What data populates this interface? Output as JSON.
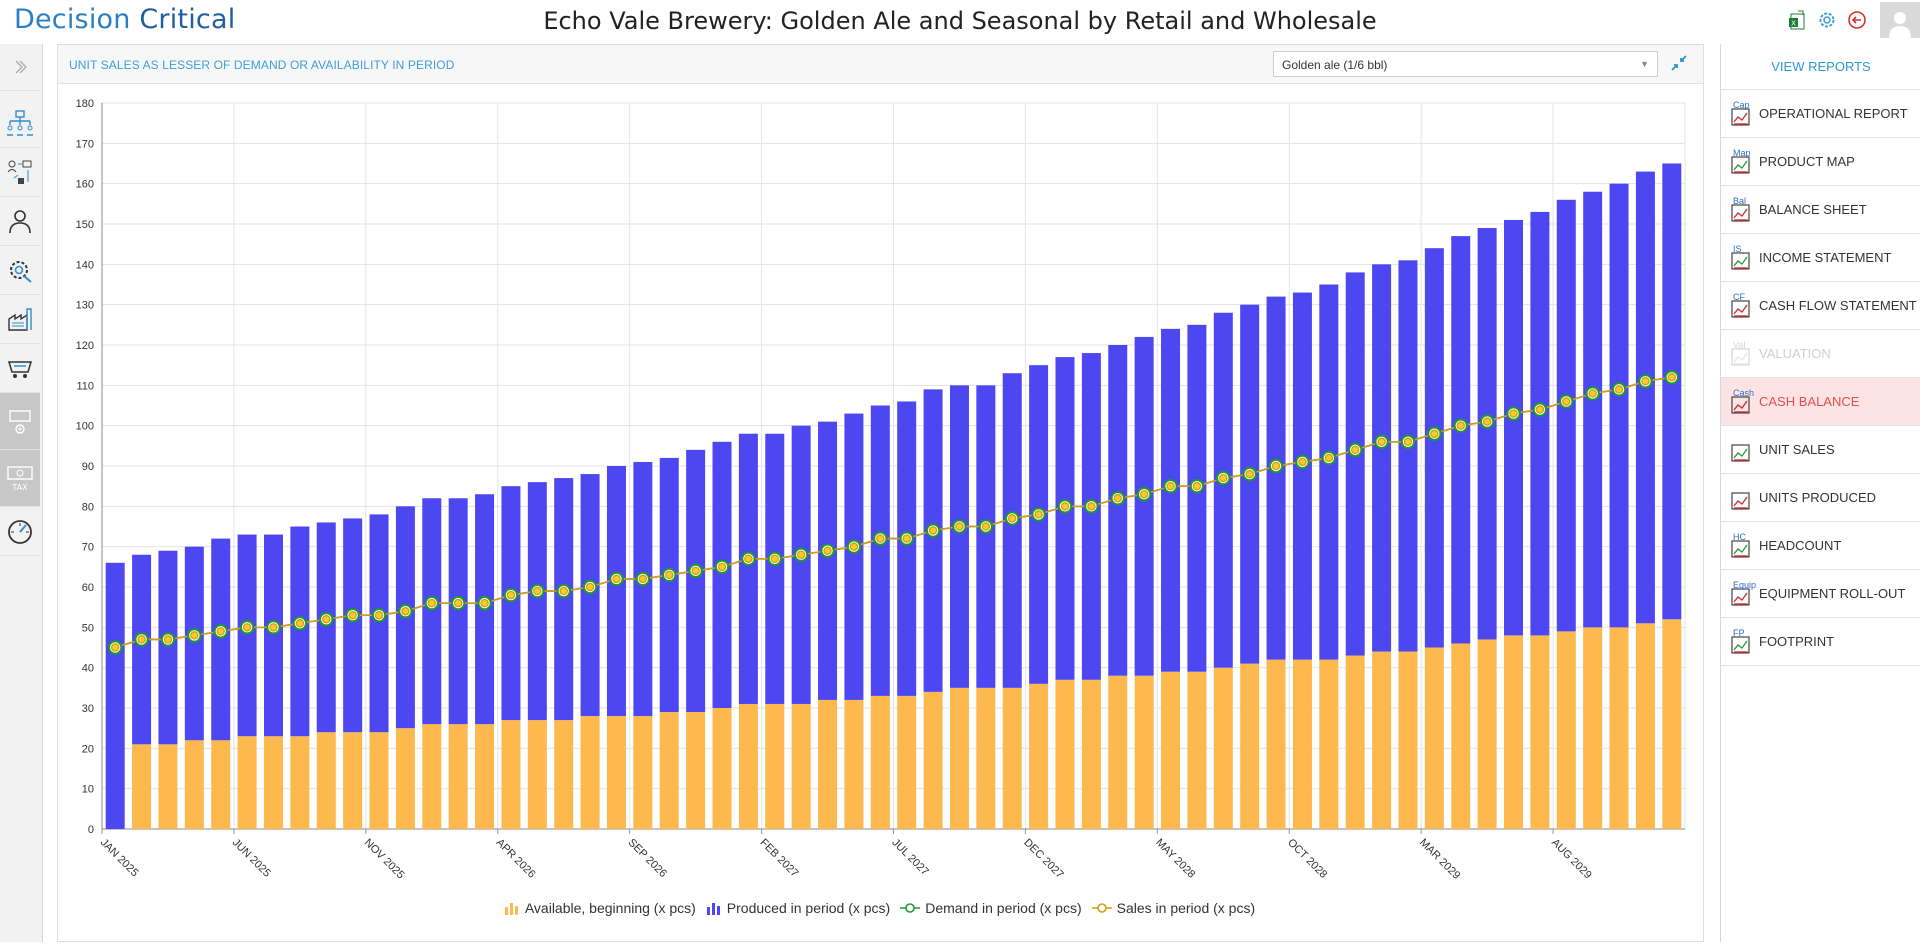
{
  "app": {
    "logo_part1": "Decision",
    "logo_part2": "Critical",
    "title": "Echo Vale Brewery: Golden Ale and Seasonal by Retail and Wholesale"
  },
  "top_icons": [
    "excel-icon",
    "settings-icon",
    "back-icon",
    "user-avatar"
  ],
  "panel": {
    "title": "UNIT SALES AS LESSER OF DEMAND OR AVAILABILITY IN PERIOD",
    "product_select": "Golden ale (1/6 bbl)"
  },
  "left_nav": [
    {
      "name": "expand-chevron-icon",
      "disabled": false
    },
    {
      "name": "org-chart-icon",
      "disabled": false
    },
    {
      "name": "workflow-icon",
      "disabled": false
    },
    {
      "name": "person-icon",
      "disabled": false
    },
    {
      "name": "gear-wrench-icon",
      "disabled": false
    },
    {
      "name": "factory-icon",
      "disabled": false
    },
    {
      "name": "cart-icon",
      "disabled": false
    },
    {
      "name": "cash-add-icon",
      "disabled": true
    },
    {
      "name": "tax-icon",
      "disabled": true,
      "label": "TAX"
    },
    {
      "name": "gauge-icon",
      "disabled": false
    }
  ],
  "right_nav": {
    "header": "VIEW REPORTS",
    "items": [
      {
        "label": "OPERATIONAL REPORT",
        "tag": "Cap",
        "state": "normal"
      },
      {
        "label": "PRODUCT MAP",
        "tag": "Map",
        "state": "normal"
      },
      {
        "label": "BALANCE SHEET",
        "tag": "Bal",
        "state": "normal"
      },
      {
        "label": "INCOME STATEMENT",
        "tag": "IS",
        "state": "normal"
      },
      {
        "label": "CASH FLOW STATEMENT",
        "tag": "CF",
        "state": "normal"
      },
      {
        "label": "VALUATION",
        "tag": "Val",
        "state": "disabled"
      },
      {
        "label": "CASH BALANCE",
        "tag": "Cash",
        "state": "active"
      },
      {
        "label": "UNIT SALES",
        "tag": "",
        "state": "normal"
      },
      {
        "label": "UNITS PRODUCED",
        "tag": "",
        "state": "normal"
      },
      {
        "label": "HEADCOUNT",
        "tag": "HC",
        "state": "normal"
      },
      {
        "label": "EQUIPMENT ROLL-OUT",
        "tag": "Equip",
        "state": "normal"
      },
      {
        "label": "FOOTPRINT",
        "tag": "FP",
        "state": "normal"
      }
    ]
  },
  "chart_data": {
    "type": "bar",
    "stacked": true,
    "ylim": [
      0,
      180
    ],
    "y_ticks": [
      0,
      10,
      20,
      30,
      40,
      50,
      60,
      70,
      80,
      90,
      100,
      110,
      120,
      130,
      140,
      150,
      160,
      170,
      180
    ],
    "grid": true,
    "legend_position": "bottom",
    "x_tick_labels": [
      {
        "index": 0,
        "label": "JAN 2025"
      },
      {
        "index": 5,
        "label": "JUN 2025"
      },
      {
        "index": 10,
        "label": "NOV 2025"
      },
      {
        "index": 15,
        "label": "APR 2026"
      },
      {
        "index": 20,
        "label": "SEP 2026"
      },
      {
        "index": 25,
        "label": "FEB 2027"
      },
      {
        "index": 30,
        "label": "JUL 2027"
      },
      {
        "index": 35,
        "label": "DEC 2027"
      },
      {
        "index": 40,
        "label": "MAY 2028"
      },
      {
        "index": 45,
        "label": "OCT 2028"
      },
      {
        "index": 50,
        "label": "MAR 2029"
      },
      {
        "index": 55,
        "label": "AUG 2029"
      }
    ],
    "series": [
      {
        "name": "Available, beginning (x pcs)",
        "kind": "bar",
        "color": "#fdb84e",
        "values": [
          0,
          21,
          21,
          22,
          22,
          23,
          23,
          23,
          24,
          24,
          24,
          25,
          26,
          26,
          26,
          27,
          27,
          27,
          28,
          28,
          28,
          29,
          29,
          30,
          31,
          31,
          31,
          32,
          32,
          33,
          33,
          34,
          35,
          35,
          35,
          36,
          37,
          37,
          38,
          38,
          39,
          39,
          40,
          41,
          42,
          42,
          42,
          43,
          44,
          44,
          45,
          46,
          47,
          48,
          48,
          49,
          50,
          50,
          51,
          52
        ]
      },
      {
        "name": "Produced in period (x pcs)",
        "kind": "bar",
        "color": "#4d47f2",
        "values": [
          66,
          47,
          48,
          48,
          50,
          50,
          50,
          52,
          52,
          53,
          54,
          55,
          56,
          56,
          57,
          58,
          59,
          60,
          60,
          62,
          63,
          63,
          65,
          66,
          67,
          67,
          69,
          69,
          71,
          72,
          73,
          75,
          75,
          75,
          78,
          79,
          80,
          81,
          82,
          84,
          85,
          86,
          88,
          89,
          90,
          91,
          93,
          95,
          96,
          97,
          99,
          101,
          102,
          103,
          105,
          107,
          108,
          110,
          112,
          113
        ]
      },
      {
        "name": "Demand in period (x pcs)",
        "kind": "line",
        "color": "#1e9a2c",
        "values": [
          45,
          47,
          47,
          48,
          49,
          50,
          50,
          51,
          52,
          53,
          53,
          54,
          56,
          56,
          56,
          58,
          59,
          59,
          60,
          62,
          62,
          63,
          64,
          65,
          67,
          67,
          68,
          69,
          70,
          72,
          72,
          74,
          75,
          75,
          77,
          78,
          80,
          80,
          82,
          83,
          85,
          85,
          87,
          88,
          90,
          91,
          92,
          94,
          96,
          96,
          98,
          100,
          101,
          103,
          104,
          106,
          108,
          109,
          111,
          112
        ]
      },
      {
        "name": "Sales in period (x pcs)",
        "kind": "line",
        "color": "#d79a18",
        "values": [
          45,
          47,
          47,
          48,
          49,
          50,
          50,
          51,
          52,
          53,
          53,
          54,
          56,
          56,
          56,
          58,
          59,
          59,
          60,
          62,
          62,
          63,
          64,
          65,
          67,
          67,
          68,
          69,
          70,
          72,
          72,
          74,
          75,
          75,
          77,
          78,
          80,
          80,
          82,
          83,
          85,
          85,
          87,
          88,
          90,
          91,
          92,
          94,
          96,
          96,
          98,
          100,
          101,
          103,
          104,
          106,
          108,
          109,
          111,
          112
        ]
      }
    ]
  }
}
